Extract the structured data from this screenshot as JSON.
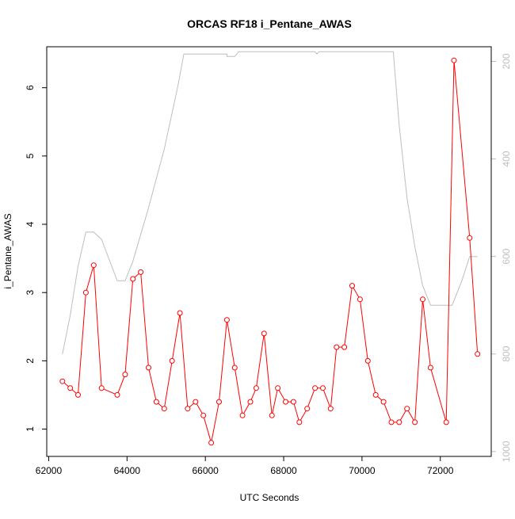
{
  "chart_data": {
    "type": "line",
    "title": "ORCAS RF18 i_Pentane_AWAS",
    "xlabel": "UTC Seconds",
    "ylabel": "i_Pentane_AWAS",
    "xlim": [
      61950,
      73300
    ],
    "ylim": [
      0.6,
      6.6
    ],
    "x_ticks": [
      62000,
      64000,
      66000,
      68000,
      70000,
      72000
    ],
    "y_ticks": [
      1,
      2,
      3,
      4,
      5,
      6
    ],
    "y2_ticks": [
      200,
      400,
      600,
      800,
      1000
    ],
    "y2_lim": [
      1010,
      170
    ],
    "grid": false,
    "legend": "none",
    "colors": {
      "series": "#ff0000",
      "altitude": "#bebebe",
      "axis": "#000000",
      "axis2": "#bebebe"
    },
    "series": [
      {
        "values": [
          [
            62350,
            1.7
          ],
          [
            62550,
            1.6
          ],
          [
            62750,
            1.5
          ],
          [
            62950,
            3.0
          ],
          [
            63150,
            3.4
          ],
          [
            63350,
            1.6
          ],
          [
            63750,
            1.5
          ],
          [
            63950,
            1.8
          ],
          [
            64150,
            3.2
          ],
          [
            64350,
            3.3
          ],
          [
            64550,
            1.9
          ],
          [
            64750,
            1.4
          ],
          [
            64950,
            1.3
          ],
          [
            65150,
            2.0
          ],
          [
            65350,
            2.7
          ],
          [
            65550,
            1.3
          ],
          [
            65750,
            1.4
          ],
          [
            65950,
            1.2
          ],
          [
            66150,
            0.8
          ],
          [
            66350,
            1.4
          ],
          [
            66550,
            2.6
          ],
          [
            66750,
            1.9
          ],
          [
            66950,
            1.2
          ],
          [
            67150,
            1.4
          ],
          [
            67300,
            1.6
          ],
          [
            67500,
            2.4
          ],
          [
            67700,
            1.2
          ],
          [
            67850,
            1.6
          ],
          [
            68050,
            1.4
          ],
          [
            68250,
            1.4
          ],
          [
            68400,
            1.1
          ],
          [
            68600,
            1.3
          ],
          [
            68800,
            1.6
          ],
          [
            69000,
            1.6
          ],
          [
            69200,
            1.3
          ],
          [
            69350,
            2.2
          ],
          [
            69550,
            2.2
          ],
          [
            69750,
            3.1
          ],
          [
            69950,
            2.9
          ],
          [
            70150,
            2.0
          ],
          [
            70350,
            1.5
          ],
          [
            70550,
            1.4
          ],
          [
            70750,
            1.1
          ],
          [
            70950,
            1.1
          ],
          [
            71150,
            1.3
          ],
          [
            71350,
            1.1
          ],
          [
            71550,
            2.9
          ],
          [
            71750,
            1.9
          ],
          [
            72150,
            1.1
          ],
          [
            72350,
            6.4
          ],
          [
            72750,
            3.8
          ],
          [
            72950,
            2.1
          ]
        ]
      },
      {
        "axis": "right",
        "values": [
          [
            62350,
            800
          ],
          [
            62550,
            720
          ],
          [
            62750,
            620
          ],
          [
            62950,
            550
          ],
          [
            63150,
            550
          ],
          [
            63350,
            565
          ],
          [
            63750,
            650
          ],
          [
            63950,
            650
          ],
          [
            64150,
            610
          ],
          [
            64550,
            500
          ],
          [
            64950,
            380
          ],
          [
            65300,
            250
          ],
          [
            65450,
            185
          ],
          [
            66550,
            185
          ],
          [
            66550,
            190
          ],
          [
            66750,
            190
          ],
          [
            66850,
            180
          ],
          [
            68800,
            180
          ],
          [
            68850,
            185
          ],
          [
            68900,
            180
          ],
          [
            70800,
            180
          ],
          [
            70950,
            330
          ],
          [
            71150,
            480
          ],
          [
            71350,
            580
          ],
          [
            71550,
            660
          ],
          [
            71750,
            700
          ],
          [
            72100,
            700
          ],
          [
            72300,
            700
          ],
          [
            72550,
            650
          ],
          [
            72750,
            600
          ],
          [
            72950,
            600
          ]
        ]
      }
    ]
  }
}
